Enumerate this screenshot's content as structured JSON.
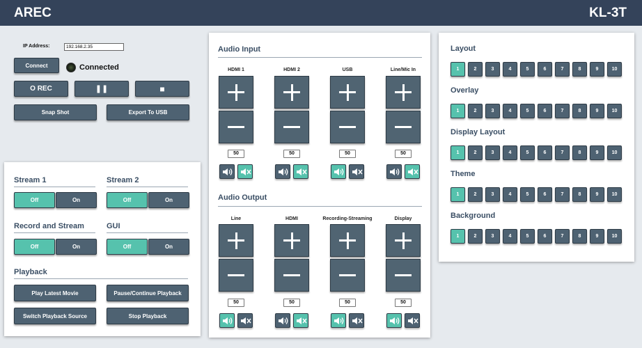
{
  "header": {
    "brand": "AREC",
    "model": "KL-3T"
  },
  "connection": {
    "ip_label": "IP Address:",
    "ip_value": "192.168.2.35",
    "connect_label": "Connect",
    "status": "Connected"
  },
  "recording": {
    "rec_label": "O REC",
    "pause_glyph": "❚❚",
    "stop_glyph": "■",
    "snapshot_label": "Snap Shot",
    "export_label": "Export To USB"
  },
  "stream_panel": {
    "stream1": {
      "title": "Stream 1",
      "off": "Off",
      "on": "On"
    },
    "stream2": {
      "title": "Stream 2",
      "off": "Off",
      "on": "On"
    },
    "record_stream": {
      "title": "Record and Stream",
      "off": "Off",
      "on": "On"
    },
    "gui": {
      "title": "GUI",
      "off": "Off",
      "on": "On"
    },
    "playback": {
      "title": "Playback",
      "play_latest": "Play Latest Movie",
      "pause_continue": "Pause/Continue Playback",
      "switch_source": "Switch Playback Source",
      "stop": "Stop Playback"
    }
  },
  "audio_input": {
    "title": "Audio Input",
    "channels": [
      {
        "label": "HDMI 1",
        "volume": "50",
        "muted": true
      },
      {
        "label": "HDMI 2",
        "volume": "50",
        "muted": true
      },
      {
        "label": "USB",
        "volume": "50",
        "muted": false
      },
      {
        "label": "Line/Mic In",
        "volume": "50",
        "muted": true
      }
    ]
  },
  "audio_output": {
    "title": "Audio Output",
    "channels": [
      {
        "label": "Line",
        "volume": "50",
        "muted": false
      },
      {
        "label": "HDMI",
        "volume": "50",
        "muted": true
      },
      {
        "label": "Recording-Streaming",
        "volume": "50",
        "muted": false
      },
      {
        "label": "Display",
        "volume": "50",
        "muted": false
      }
    ]
  },
  "layout_panel": {
    "groups": [
      {
        "title": "Layout",
        "selected": 1
      },
      {
        "title": "Overlay",
        "selected": 1
      },
      {
        "title": "Display Layout",
        "selected": 1
      },
      {
        "title": "Theme",
        "selected": 1
      },
      {
        "title": "Background",
        "selected": 1
      }
    ],
    "numbers": [
      "1",
      "2",
      "3",
      "4",
      "5",
      "6",
      "7",
      "8",
      "9",
      "10"
    ]
  },
  "colors": {
    "header_bg": "#34435a",
    "button": "#4e6272",
    "active": "#56c2ad"
  }
}
